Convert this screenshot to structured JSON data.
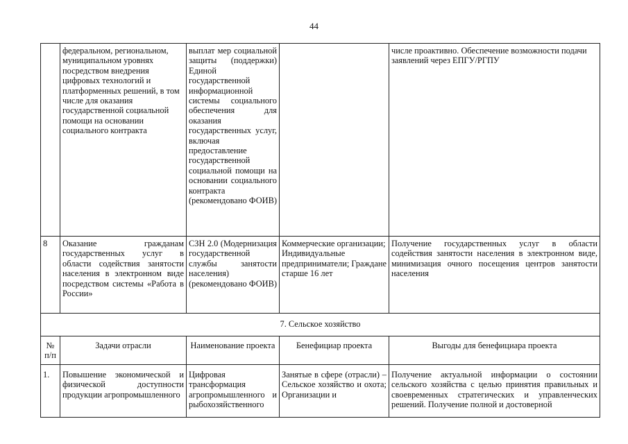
{
  "page_number": "44",
  "rows_continued": [
    {
      "num": "",
      "task": "федеральном, региональном, муниципальном уровнях посредством внедрения цифровых технологий и платформенных решений, в том числе для оказания государственной социальной помощи на основании социального контракта",
      "project": "выплат мер социальной защиты (поддержки) Единой государственной информационной системы социального обеспечения для оказания государственных услуг, включая предоставление государственной социальной помощи на основании социального контракта (рекомендовано ФОИВ)",
      "beneficiary": "",
      "benefits": "числе проактивно. Обеспечение возможности подачи заявлений через ЕПГУ/РГПУ"
    },
    {
      "num": "8",
      "task": "Оказание гражданам государственных услуг в области содействия занятости населения в электронном виде посредством системы «Работа в России»",
      "project": "СЗН 2.0 (Модернизация государственной службы занятости населения) (рекомендовано ФОИВ)",
      "beneficiary": "Коммерческие организации; Индивидуальные предприниматели; Граждане старше 16 лет",
      "benefits": "Получение государственных услуг в области содействия занятости населения в электронном виде, минимизация очного посещения центров занятости населения"
    }
  ],
  "section_title": "7. Сельское хозяйство",
  "headers": {
    "num": "№ п/п",
    "task": "Задачи отрасли",
    "project": "Наименование проекта",
    "beneficiary": "Бенефициар проекта",
    "benefits": "Выгоды для бенефициара проекта"
  },
  "section_rows": [
    {
      "num": "1.",
      "task": "Повышение экономической и физической доступности продукции агропромышленного",
      "project": "Цифровая трансформация агропромышленного и рыбохозяйственного",
      "beneficiary": "Занятые в сфере (отрасли) – Сельское хозяйство и охота; Организации и",
      "benefits": "Получение актуальной информации о состоянии сельского хозяйства с целью принятия правильных и своевременных стратегических и управленческих решений. Получение полной и достоверной"
    }
  ]
}
